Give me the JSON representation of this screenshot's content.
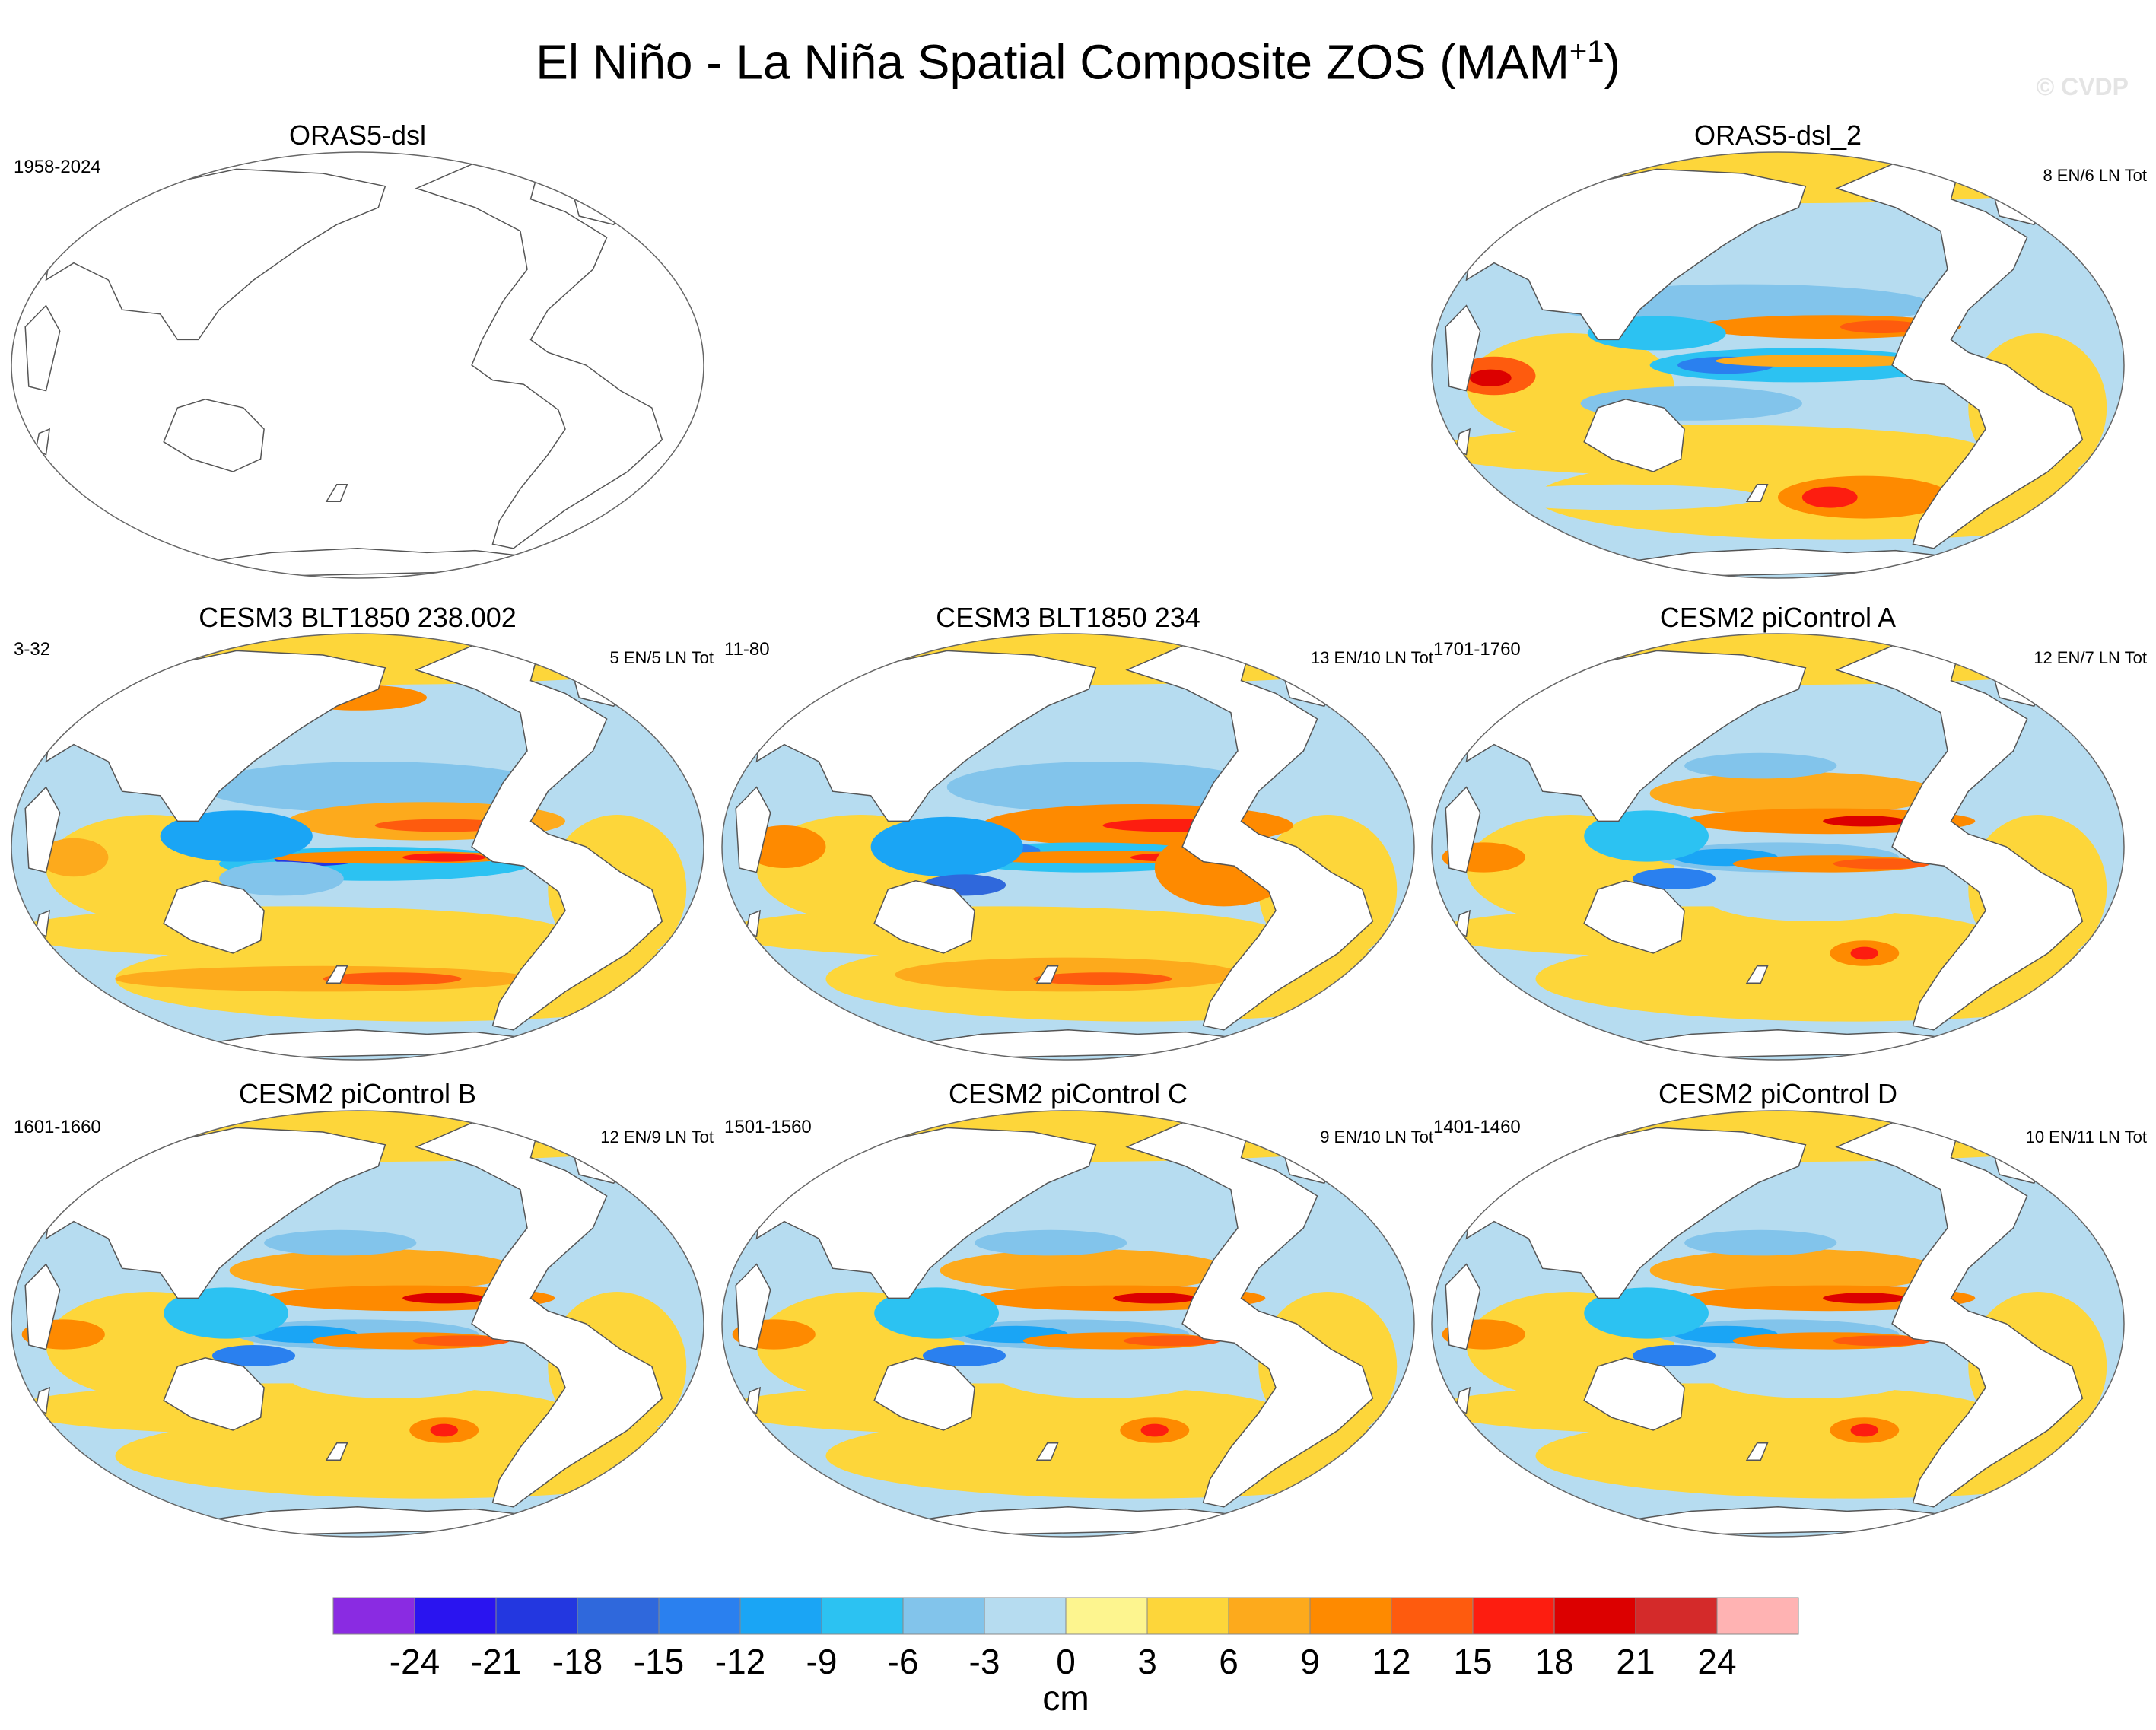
{
  "title_main": "El Niño - La Niña Spatial Composite ZOS (MAM",
  "title_sup": "+1",
  "title_close": ")",
  "watermark": "© CVDP",
  "panels": [
    {
      "title": "ORAS5-dsl",
      "left_label": "1958-2024",
      "right_label": "",
      "empty": true
    },
    {
      "title": "ORAS5-dsl_2",
      "left_label": "",
      "right_label": "8 EN/6 LN Tot",
      "pattern": "obs"
    },
    {
      "title": "CESM3 BLT1850 238.002",
      "left_label": "3-32",
      "right_label": "5 EN/5 LN Tot",
      "pattern": "cesm3a"
    },
    {
      "title": "CESM3 BLT1850 234",
      "left_label": "11-80",
      "right_label": "13 EN/10 LN Tot",
      "pattern": "cesm3b"
    },
    {
      "title": "CESM2 piControl A",
      "left_label": "1701-1760",
      "right_label": "12 EN/7 LN Tot",
      "pattern": "cesm2"
    },
    {
      "title": "CESM2 piControl B",
      "left_label": "1601-1660",
      "right_label": "12 EN/9 LN Tot",
      "pattern": "cesm2"
    },
    {
      "title": "CESM2 piControl C",
      "left_label": "1501-1560",
      "right_label": "9 EN/10 LN Tot",
      "pattern": "cesm2"
    },
    {
      "title": "CESM2 piControl D",
      "left_label": "1401-1460",
      "right_label": "10 EN/11 LN Tot",
      "pattern": "cesm2"
    }
  ],
  "chart_data": {
    "type": "heatmap",
    "title": "El Niño - La Niña Spatial Composite ZOS (MAM+1)",
    "colorbar": {
      "unit": "cm",
      "levels": [
        -24,
        -21,
        -18,
        -15,
        -12,
        -9,
        -6,
        -3,
        0,
        3,
        6,
        9,
        12,
        15,
        18,
        21,
        24
      ],
      "colors": [
        "#8a2be2",
        "#2a14f0",
        "#2337e0",
        "#2f68dc",
        "#2a80ef",
        "#1aa5f5",
        "#2cc2f2",
        "#82c4eb",
        "#b6dcf0",
        "#fdf58f",
        "#fdd63a",
        "#fdaa1c",
        "#fe8a00",
        "#fe5b0e",
        "#fd1d10",
        "#dc0000",
        "#d42a2a",
        "#ffb3b3"
      ],
      "tick_labels": [
        "-24",
        "-21",
        "-18",
        "-15",
        "-12",
        "-9",
        "-6",
        "-3",
        "0",
        "3",
        "6",
        "9",
        "12",
        "15",
        "18",
        "21",
        "24"
      ]
    }
  }
}
